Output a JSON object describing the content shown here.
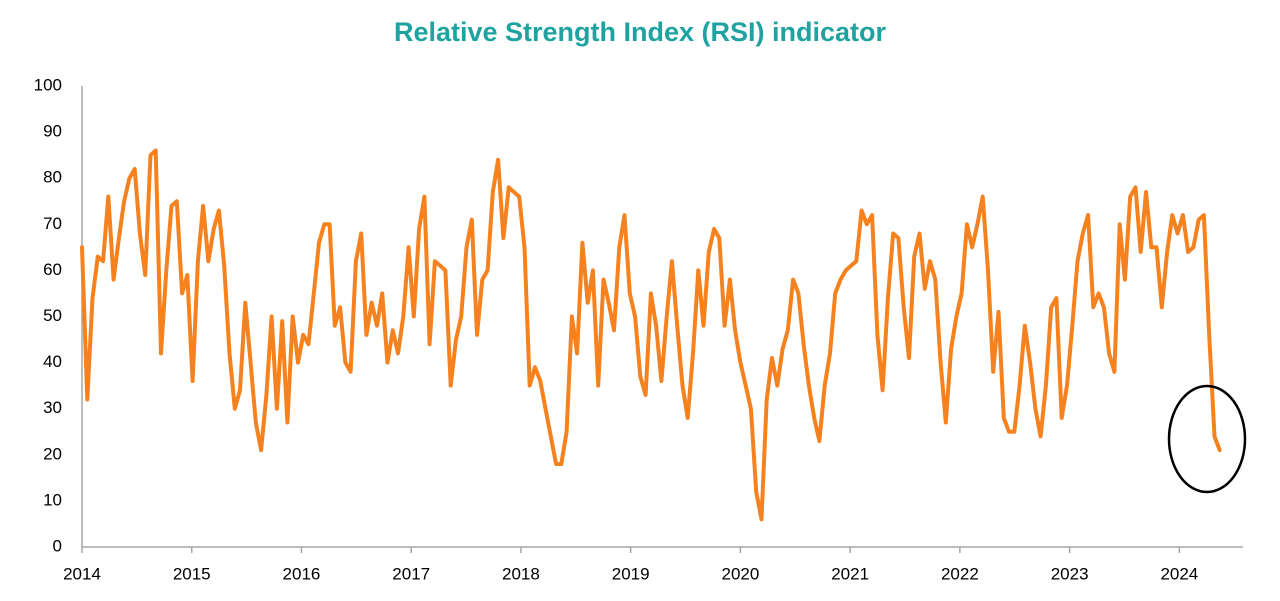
{
  "chart_data": {
    "type": "line",
    "title": "Relative Strength Index (RSI) indicator",
    "xlim": [
      2014,
      2024.58
    ],
    "xticks": [
      2014,
      2015,
      2016,
      2017,
      2018,
      2019,
      2020,
      2021,
      2022,
      2023,
      2024
    ],
    "ylim": [
      0,
      100
    ],
    "yticks": [
      0,
      10,
      20,
      30,
      40,
      50,
      60,
      70,
      80,
      90,
      100
    ],
    "grid": false,
    "x": [
      2014,
      2014.048,
      2014.096,
      2014.144,
      2014.192,
      2014.24,
      2014.288,
      2014.336,
      2014.384,
      2014.432,
      2014.48,
      2014.528,
      2014.576,
      2014.624,
      2014.672,
      2014.72,
      2014.768,
      2014.816,
      2014.864,
      2014.912,
      2014.96,
      2015.008,
      2015.056,
      2015.104,
      2015.152,
      2015.2,
      2015.248,
      2015.296,
      2015.344,
      2015.392,
      2015.44,
      2015.488,
      2015.536,
      2015.584,
      2015.632,
      2015.68,
      2015.728,
      2015.776,
      2015.824,
      2015.872,
      2015.92,
      2015.968,
      2016.016,
      2016.064,
      2016.112,
      2016.16,
      2016.208,
      2016.256,
      2016.304,
      2016.352,
      2016.4,
      2016.448,
      2016.496,
      2016.544,
      2016.592,
      2016.64,
      2016.688,
      2016.736,
      2016.784,
      2016.832,
      2016.88,
      2016.928,
      2016.976,
      2017.024,
      2017.072,
      2017.12,
      2017.168,
      2017.216,
      2017.264,
      2017.312,
      2017.36,
      2017.408,
      2017.456,
      2017.504,
      2017.552,
      2017.6,
      2017.648,
      2017.696,
      2017.744,
      2017.792,
      2017.84,
      2017.888,
      2017.936,
      2017.984,
      2018.032,
      2018.08,
      2018.128,
      2018.176,
      2018.224,
      2018.272,
      2018.32,
      2018.368,
      2018.416,
      2018.464,
      2018.512,
      2018.56,
      2018.608,
      2018.656,
      2018.704,
      2018.752,
      2018.8,
      2018.848,
      2018.896,
      2018.944,
      2018.992,
      2019.04,
      2019.088,
      2019.136,
      2019.184,
      2019.232,
      2019.28,
      2019.328,
      2019.376,
      2019.424,
      2019.472,
      2019.52,
      2019.568,
      2019.616,
      2019.664,
      2019.712,
      2019.76,
      2019.808,
      2019.856,
      2019.904,
      2019.952,
      2020,
      2020.048,
      2020.096,
      2020.144,
      2020.192,
      2020.24,
      2020.288,
      2020.336,
      2020.384,
      2020.432,
      2020.48,
      2020.528,
      2020.576,
      2020.624,
      2020.672,
      2020.72,
      2020.768,
      2020.816,
      2020.864,
      2020.912,
      2020.96,
      2021.008,
      2021.056,
      2021.104,
      2021.152,
      2021.2,
      2021.248,
      2021.296,
      2021.344,
      2021.392,
      2021.44,
      2021.488,
      2021.536,
      2021.584,
      2021.632,
      2021.68,
      2021.728,
      2021.776,
      2021.824,
      2021.872,
      2021.92,
      2021.968,
      2022.016,
      2022.064,
      2022.112,
      2022.16,
      2022.208,
      2022.256,
      2022.304,
      2022.352,
      2022.4,
      2022.448,
      2022.496,
      2022.544,
      2022.592,
      2022.64,
      2022.688,
      2022.736,
      2022.784,
      2022.832,
      2022.88,
      2022.928,
      2022.976,
      2023.024,
      2023.072,
      2023.12,
      2023.168,
      2023.216,
      2023.264,
      2023.312,
      2023.36,
      2023.408,
      2023.456,
      2023.504,
      2023.552,
      2023.6,
      2023.648,
      2023.696,
      2023.744,
      2023.792,
      2023.84,
      2023.888,
      2023.936,
      2023.984,
      2024.032,
      2024.08,
      2024.128,
      2024.176,
      2024.224,
      2024.272,
      2024.32,
      2024.368
    ],
    "series": [
      {
        "name": "RSI",
        "color": "#f5821f",
        "values": [
          65,
          32,
          54,
          63,
          62,
          76,
          58,
          67,
          75,
          80,
          82,
          68,
          59,
          85,
          86,
          42,
          60,
          74,
          75,
          55,
          59,
          36,
          62,
          74,
          62,
          69,
          73,
          61,
          42,
          30,
          34,
          53,
          40,
          27,
          21,
          33,
          50,
          30,
          49,
          27,
          50,
          40,
          46,
          44,
          55,
          66,
          70,
          70,
          48,
          52,
          40,
          38,
          62,
          68,
          46,
          53,
          48,
          55,
          40,
          47,
          42,
          50,
          65,
          50,
          69,
          76,
          44,
          62,
          61,
          60,
          35,
          45,
          50,
          65,
          71,
          46,
          58,
          60,
          77,
          84,
          67,
          78,
          77,
          76,
          65,
          35,
          39,
          36,
          30,
          24,
          18,
          18,
          25,
          50,
          42,
          66,
          53,
          60,
          35,
          58,
          53,
          47,
          65,
          72,
          55,
          50,
          37,
          33,
          55,
          48,
          36,
          50,
          62,
          48,
          35,
          28,
          42,
          60,
          48,
          64,
          69,
          67,
          48,
          58,
          47,
          40,
          35,
          30,
          12,
          6,
          32,
          41,
          35,
          43,
          47,
          58,
          55,
          44,
          35,
          28,
          23,
          35,
          42,
          55,
          58,
          60,
          61,
          62,
          73,
          70,
          72,
          46,
          34,
          54,
          68,
          67,
          52,
          41,
          63,
          68,
          56,
          62,
          58,
          40,
          27,
          43,
          50,
          55,
          70,
          65,
          70,
          76,
          60,
          38,
          51,
          28,
          25,
          25,
          35,
          48,
          40,
          30,
          24,
          35,
          52,
          54,
          28,
          35,
          48,
          62,
          68,
          72,
          52,
          55,
          52,
          42,
          38,
          70,
          58,
          76,
          78,
          64,
          77,
          65,
          65,
          52,
          64,
          72,
          68,
          72,
          64,
          65,
          71,
          72,
          46,
          24,
          21
        ]
      }
    ]
  }
}
